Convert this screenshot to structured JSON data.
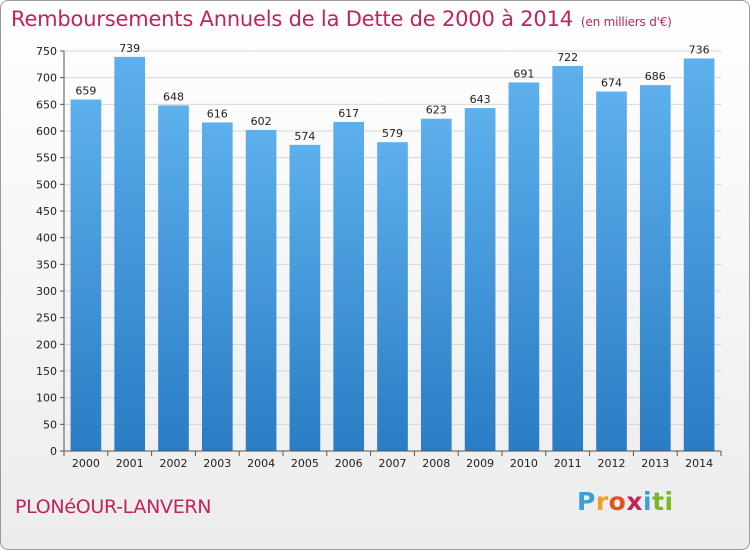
{
  "header": {
    "title": "Remboursements Annuels de la Dette de 2000 à 2014",
    "subtitle": "(en milliers d'€)"
  },
  "footer": {
    "city": "PLONéOUR-LANVERN",
    "brand": "Proxiti",
    "brand_letters": [
      "P",
      "r",
      "o",
      "x",
      "i",
      "t",
      "i"
    ],
    "brand_colors": [
      "#3aa0d8",
      "#f0a020",
      "#e05020",
      "#c0245b",
      "#3aa0d8",
      "#7ab82a",
      "#7ab82a"
    ]
  },
  "colors": {
    "bar_light": "#5db0ec",
    "bar_dark": "#2a7cc4",
    "title": "#c0245b",
    "grid": "#d7d7d7"
  },
  "chart_data": {
    "type": "bar",
    "title": "Remboursements Annuels de la Dette de 2000 à 2014",
    "subtitle": "(en milliers d'€)",
    "categories": [
      "2000",
      "2001",
      "2002",
      "2003",
      "2004",
      "2005",
      "2006",
      "2007",
      "2008",
      "2009",
      "2010",
      "2011",
      "2012",
      "2013",
      "2014"
    ],
    "values": [
      659,
      739,
      648,
      616,
      602,
      574,
      617,
      579,
      623,
      643,
      691,
      722,
      674,
      686,
      736
    ],
    "ylim": [
      0,
      750
    ],
    "yticks": [
      0,
      50,
      100,
      150,
      200,
      250,
      300,
      350,
      400,
      450,
      500,
      550,
      600,
      650,
      700,
      750
    ],
    "grid": true,
    "legend": "none"
  }
}
